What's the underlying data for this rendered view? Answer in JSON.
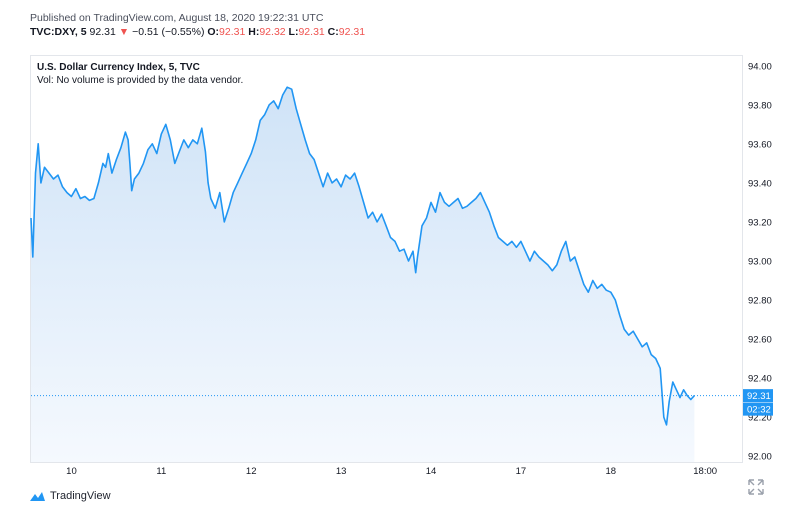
{
  "header": {
    "published": "Published on TradingView.com, August 18, 2020 19:22:31 UTC",
    "symbol": "TVC:DXY, 5",
    "last": "92.31",
    "change": "−0.51 (−0.55%)",
    "o_label": "O:",
    "o_value": "92.31",
    "h_label": "H:",
    "h_value": "92.32",
    "l_label": "L:",
    "l_value": "92.31",
    "c_label": "C:",
    "c_value": "92.31"
  },
  "legend": {
    "title": "U.S. Dollar Currency Index, 5, TVC",
    "volume_note": "Vol: No volume is provided by the data vendor."
  },
  "brand": {
    "name": "TradingView",
    "icon": "tradingview-logo-icon"
  },
  "controls": {
    "expand_icon": "expand-icon"
  },
  "colors": {
    "line": "#2196f3",
    "fill_top": "#cfe3f7",
    "fill_bottom": "#f5f9fe",
    "price_tag": "#2196f3",
    "down": "#ef5350"
  },
  "chart_data": {
    "type": "area",
    "title": "U.S. Dollar Currency Index, 5, TVC",
    "x_tick_labels": [
      "10",
      "11",
      "12",
      "13",
      "14",
      "17",
      "18",
      "18:00"
    ],
    "y_tick_labels": [
      "94.00",
      "93.80",
      "93.60",
      "93.40",
      "93.20",
      "93.00",
      "92.80",
      "92.60",
      "92.40",
      "92.20",
      "92.00"
    ],
    "y_ticks": [
      94.0,
      93.8,
      93.6,
      93.4,
      93.2,
      93.0,
      92.8,
      92.6,
      92.4,
      92.2,
      92.0
    ],
    "ylim": [
      91.97,
      94.05
    ],
    "x_range": [
      0,
      7.91
    ],
    "last_price": 92.31,
    "last_price_label": "92.31",
    "countdown_label": "02:32",
    "grid": false,
    "series": [
      {
        "values": [
          [
            0.0,
            93.22
          ],
          [
            0.02,
            93.02
          ],
          [
            0.05,
            93.45
          ],
          [
            0.08,
            93.6
          ],
          [
            0.11,
            93.4
          ],
          [
            0.15,
            93.48
          ],
          [
            0.2,
            93.45
          ],
          [
            0.25,
            93.42
          ],
          [
            0.3,
            93.44
          ],
          [
            0.35,
            93.38
          ],
          [
            0.4,
            93.35
          ],
          [
            0.45,
            93.33
          ],
          [
            0.5,
            93.37
          ],
          [
            0.55,
            93.32
          ],
          [
            0.6,
            93.33
          ],
          [
            0.65,
            93.31
          ],
          [
            0.7,
            93.32
          ],
          [
            0.75,
            93.4
          ],
          [
            0.8,
            93.5
          ],
          [
            0.83,
            93.48
          ],
          [
            0.86,
            93.55
          ],
          [
            0.9,
            93.45
          ],
          [
            0.95,
            93.52
          ],
          [
            1.0,
            93.58
          ],
          [
            1.05,
            93.66
          ],
          [
            1.08,
            93.62
          ],
          [
            1.1,
            93.5
          ],
          [
            1.12,
            93.36
          ],
          [
            1.15,
            93.42
          ],
          [
            1.2,
            93.45
          ],
          [
            1.25,
            93.5
          ],
          [
            1.3,
            93.57
          ],
          [
            1.35,
            93.6
          ],
          [
            1.4,
            93.55
          ],
          [
            1.45,
            93.65
          ],
          [
            1.5,
            93.7
          ],
          [
            1.55,
            93.62
          ],
          [
            1.6,
            93.5
          ],
          [
            1.65,
            93.56
          ],
          [
            1.7,
            93.62
          ],
          [
            1.75,
            93.58
          ],
          [
            1.8,
            93.62
          ],
          [
            1.85,
            93.6
          ],
          [
            1.9,
            93.68
          ],
          [
            1.94,
            93.56
          ],
          [
            1.97,
            93.4
          ],
          [
            2.0,
            93.32
          ],
          [
            2.05,
            93.27
          ],
          [
            2.1,
            93.35
          ],
          [
            2.15,
            93.2
          ],
          [
            2.2,
            93.27
          ],
          [
            2.25,
            93.35
          ],
          [
            2.3,
            93.4
          ],
          [
            2.35,
            93.45
          ],
          [
            2.4,
            93.5
          ],
          [
            2.45,
            93.55
          ],
          [
            2.5,
            93.62
          ],
          [
            2.55,
            93.72
          ],
          [
            2.6,
            93.75
          ],
          [
            2.65,
            93.8
          ],
          [
            2.7,
            93.82
          ],
          [
            2.75,
            93.78
          ],
          [
            2.8,
            93.85
          ],
          [
            2.85,
            93.89
          ],
          [
            2.9,
            93.88
          ],
          [
            2.95,
            93.78
          ],
          [
            3.0,
            93.7
          ],
          [
            3.05,
            93.62
          ],
          [
            3.1,
            93.55
          ],
          [
            3.15,
            93.52
          ],
          [
            3.2,
            93.45
          ],
          [
            3.25,
            93.38
          ],
          [
            3.3,
            93.45
          ],
          [
            3.35,
            93.4
          ],
          [
            3.4,
            93.42
          ],
          [
            3.45,
            93.38
          ],
          [
            3.5,
            93.44
          ],
          [
            3.55,
            93.42
          ],
          [
            3.6,
            93.45
          ],
          [
            3.65,
            93.38
          ],
          [
            3.7,
            93.3
          ],
          [
            3.75,
            93.22
          ],
          [
            3.8,
            93.25
          ],
          [
            3.85,
            93.2
          ],
          [
            3.9,
            93.24
          ],
          [
            3.95,
            93.18
          ],
          [
            4.0,
            93.12
          ],
          [
            4.05,
            93.1
          ],
          [
            4.1,
            93.05
          ],
          [
            4.15,
            93.06
          ],
          [
            4.2,
            93.0
          ],
          [
            4.25,
            93.05
          ],
          [
            4.28,
            92.94
          ],
          [
            4.3,
            93.02
          ],
          [
            4.35,
            93.18
          ],
          [
            4.4,
            93.22
          ],
          [
            4.45,
            93.3
          ],
          [
            4.5,
            93.25
          ],
          [
            4.55,
            93.35
          ],
          [
            4.6,
            93.3
          ],
          [
            4.65,
            93.28
          ],
          [
            4.7,
            93.3
          ],
          [
            4.75,
            93.32
          ],
          [
            4.8,
            93.27
          ],
          [
            4.85,
            93.28
          ],
          [
            4.9,
            93.3
          ],
          [
            4.95,
            93.32
          ],
          [
            5.0,
            93.35
          ],
          [
            5.05,
            93.3
          ],
          [
            5.1,
            93.25
          ],
          [
            5.15,
            93.18
          ],
          [
            5.2,
            93.12
          ],
          [
            5.25,
            93.1
          ],
          [
            5.3,
            93.08
          ],
          [
            5.35,
            93.1
          ],
          [
            5.4,
            93.07
          ],
          [
            5.45,
            93.1
          ],
          [
            5.5,
            93.05
          ],
          [
            5.55,
            93.0
          ],
          [
            5.6,
            93.05
          ],
          [
            5.65,
            93.02
          ],
          [
            5.7,
            93.0
          ],
          [
            5.75,
            92.98
          ],
          [
            5.8,
            92.95
          ],
          [
            5.85,
            92.98
          ],
          [
            5.9,
            93.05
          ],
          [
            5.95,
            93.1
          ],
          [
            6.0,
            93.0
          ],
          [
            6.05,
            93.02
          ],
          [
            6.1,
            92.95
          ],
          [
            6.15,
            92.88
          ],
          [
            6.2,
            92.84
          ],
          [
            6.25,
            92.9
          ],
          [
            6.3,
            92.86
          ],
          [
            6.35,
            92.88
          ],
          [
            6.4,
            92.85
          ],
          [
            6.45,
            92.84
          ],
          [
            6.5,
            92.8
          ],
          [
            6.55,
            92.72
          ],
          [
            6.6,
            92.65
          ],
          [
            6.65,
            92.62
          ],
          [
            6.7,
            92.64
          ],
          [
            6.75,
            92.6
          ],
          [
            6.8,
            92.56
          ],
          [
            6.85,
            92.58
          ],
          [
            6.9,
            92.52
          ],
          [
            6.95,
            92.5
          ],
          [
            7.0,
            92.45
          ],
          [
            7.04,
            92.2
          ],
          [
            7.07,
            92.16
          ],
          [
            7.1,
            92.28
          ],
          [
            7.14,
            92.38
          ],
          [
            7.18,
            92.34
          ],
          [
            7.22,
            92.3
          ],
          [
            7.26,
            92.34
          ],
          [
            7.3,
            92.31
          ],
          [
            7.34,
            92.29
          ],
          [
            7.38,
            92.31
          ]
        ]
      }
    ]
  }
}
